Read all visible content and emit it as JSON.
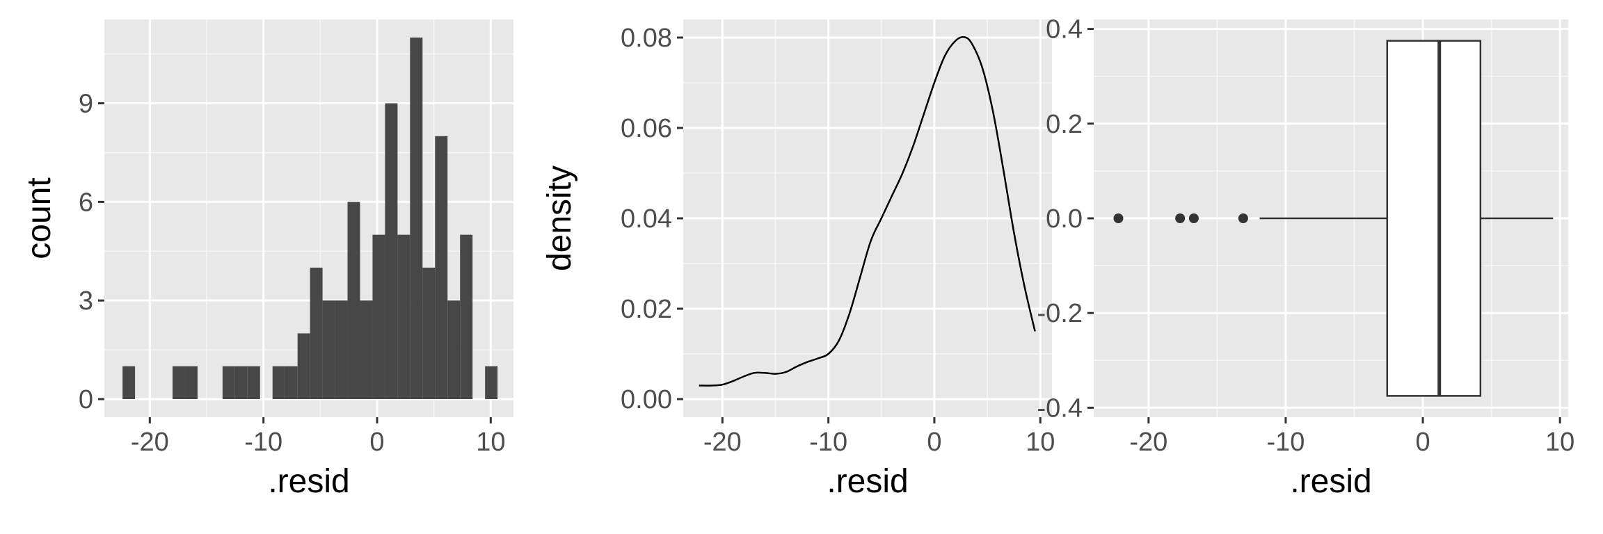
{
  "chart_data": [
    {
      "type": "bar",
      "subtype": "histogram",
      "xlabel": ".resid",
      "ylabel": "count",
      "xlim": [
        -24,
        12
      ],
      "ylim": [
        -0.55,
        11.55
      ],
      "x_ticks": [
        -20,
        -10,
        0,
        10
      ],
      "y_ticks": [
        0,
        3,
        6,
        9
      ],
      "bin_width": 1.1,
      "bins": [
        {
          "x": -21.85,
          "count": 1
        },
        {
          "x": -20.75,
          "count": 0
        },
        {
          "x": -19.65,
          "count": 0
        },
        {
          "x": -18.55,
          "count": 0
        },
        {
          "x": -17.45,
          "count": 1
        },
        {
          "x": -16.35,
          "count": 1
        },
        {
          "x": -15.25,
          "count": 0
        },
        {
          "x": -14.15,
          "count": 0
        },
        {
          "x": -13.05,
          "count": 1
        },
        {
          "x": -11.95,
          "count": 1
        },
        {
          "x": -10.85,
          "count": 1
        },
        {
          "x": -9.75,
          "count": 0
        },
        {
          "x": -8.65,
          "count": 1
        },
        {
          "x": -7.55,
          "count": 1
        },
        {
          "x": -6.45,
          "count": 2
        },
        {
          "x": -5.35,
          "count": 4
        },
        {
          "x": -4.25,
          "count": 3
        },
        {
          "x": -3.15,
          "count": 3
        },
        {
          "x": -2.05,
          "count": 6
        },
        {
          "x": -0.95,
          "count": 3
        },
        {
          "x": 0.15,
          "count": 5
        },
        {
          "x": 1.25,
          "count": 9
        },
        {
          "x": 2.35,
          "count": 5
        },
        {
          "x": 3.45,
          "count": 11
        },
        {
          "x": 4.55,
          "count": 4
        },
        {
          "x": 5.65,
          "count": 8
        },
        {
          "x": 6.75,
          "count": 3
        },
        {
          "x": 7.85,
          "count": 5
        },
        {
          "x": 8.95,
          "count": 0
        },
        {
          "x": 10.05,
          "count": 1
        }
      ],
      "grid": true
    },
    {
      "type": "line",
      "subtype": "density",
      "xlabel": ".resid",
      "ylabel": "density",
      "xlim": [
        -23.7,
        11.1
      ],
      "ylim": [
        -0.004,
        0.084
      ],
      "x_ticks": [
        -20,
        -10,
        0,
        10
      ],
      "y_ticks": [
        0.0,
        0.02,
        0.04,
        0.06,
        0.08
      ],
      "y_tick_labels": [
        "0.00",
        "0.02",
        "0.04",
        "0.06",
        "0.08"
      ],
      "x": [
        -22.2,
        -21,
        -20,
        -19,
        -18,
        -17,
        -16,
        -15,
        -14,
        -13,
        -12,
        -11,
        -10,
        -9,
        -8,
        -7,
        -6,
        -5,
        -4,
        -3,
        -2,
        -1,
        0,
        1,
        2,
        2.8,
        3.5,
        4.5,
        5.5,
        6.5,
        7.5,
        8.5,
        9.5
      ],
      "y": [
        0.003,
        0.003,
        0.0032,
        0.004,
        0.005,
        0.0058,
        0.0058,
        0.0056,
        0.006,
        0.0072,
        0.0082,
        0.009,
        0.01,
        0.013,
        0.019,
        0.027,
        0.035,
        0.04,
        0.045,
        0.05,
        0.056,
        0.063,
        0.07,
        0.076,
        0.0793,
        0.0801,
        0.0788,
        0.0735,
        0.064,
        0.051,
        0.037,
        0.025,
        0.015
      ],
      "grid": true
    },
    {
      "type": "boxplot",
      "xlabel": ".resid",
      "xlim": [
        -24,
        10.6
      ],
      "ylim": [
        -0.42,
        0.42
      ],
      "x_ticks": [
        -20,
        -10,
        0,
        10
      ],
      "y_ticks": [
        -0.4,
        -0.2,
        0.0,
        0.2,
        0.4
      ],
      "y_tick_labels": [
        "-0.4",
        "-0.2",
        "0.0",
        "0.2",
        "0.4"
      ],
      "box": {
        "whisker_low": -11.9,
        "q1": -2.6,
        "median": 1.2,
        "q3": 4.2,
        "whisker_high": 9.5,
        "ymin": -0.375,
        "ymax": 0.375
      },
      "outliers": [
        -22.2,
        -17.7,
        -16.7,
        -13.1
      ],
      "grid": true
    }
  ]
}
